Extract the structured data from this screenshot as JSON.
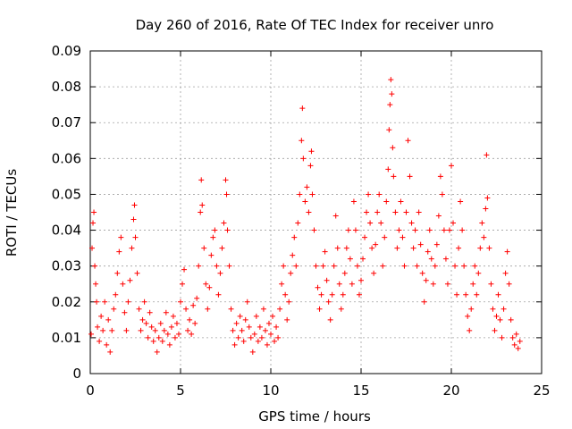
{
  "chart_data": {
    "type": "scatter",
    "title": "Day 260 of 2016, Rate Of TEC Index for receiver unro",
    "xlabel": "GPS time / hours",
    "ylabel": "ROTI / TECUs",
    "xlim": [
      0,
      25
    ],
    "ylim": [
      0,
      0.09
    ],
    "x_ticks": [
      0,
      5,
      10,
      15,
      20,
      25
    ],
    "x_tick_labels": [
      "0",
      "5",
      "10",
      "15",
      "20",
      "25"
    ],
    "y_ticks": [
      0,
      0.01,
      0.02,
      0.03,
      0.04,
      0.05,
      0.06,
      0.07,
      0.08,
      0.09
    ],
    "y_tick_labels": [
      "0",
      "0.01",
      "0.02",
      "0.03",
      "0.04",
      "0.05",
      "0.06",
      "0.07",
      "0.08",
      "0.09"
    ],
    "grid": true,
    "marker": "+",
    "marker_color": "#ff0000",
    "points": [
      [
        0.05,
        0.011
      ],
      [
        0.1,
        0.035
      ],
      [
        0.15,
        0.042
      ],
      [
        0.2,
        0.045
      ],
      [
        0.25,
        0.03
      ],
      [
        0.3,
        0.025
      ],
      [
        0.35,
        0.02
      ],
      [
        0.4,
        0.013
      ],
      [
        0.5,
        0.009
      ],
      [
        0.6,
        0.016
      ],
      [
        0.7,
        0.012
      ],
      [
        0.8,
        0.02
      ],
      [
        0.9,
        0.008
      ],
      [
        1.0,
        0.015
      ],
      [
        1.1,
        0.006
      ],
      [
        1.2,
        0.012
      ],
      [
        1.3,
        0.018
      ],
      [
        1.4,
        0.022
      ],
      [
        1.5,
        0.028
      ],
      [
        1.6,
        0.034
      ],
      [
        1.7,
        0.038
      ],
      [
        1.8,
        0.025
      ],
      [
        1.9,
        0.017
      ],
      [
        2.0,
        0.012
      ],
      [
        2.1,
        0.02
      ],
      [
        2.2,
        0.026
      ],
      [
        2.3,
        0.035
      ],
      [
        2.4,
        0.043
      ],
      [
        2.45,
        0.047
      ],
      [
        2.5,
        0.038
      ],
      [
        2.6,
        0.028
      ],
      [
        2.7,
        0.018
      ],
      [
        2.8,
        0.012
      ],
      [
        2.9,
        0.015
      ],
      [
        3.0,
        0.02
      ],
      [
        3.1,
        0.014
      ],
      [
        3.2,
        0.01
      ],
      [
        3.3,
        0.017
      ],
      [
        3.4,
        0.013
      ],
      [
        3.5,
        0.009
      ],
      [
        3.6,
        0.012
      ],
      [
        3.7,
        0.006
      ],
      [
        3.8,
        0.01
      ],
      [
        3.9,
        0.014
      ],
      [
        4.0,
        0.009
      ],
      [
        4.1,
        0.012
      ],
      [
        4.2,
        0.017
      ],
      [
        4.3,
        0.011
      ],
      [
        4.4,
        0.008
      ],
      [
        4.5,
        0.013
      ],
      [
        4.6,
        0.016
      ],
      [
        4.7,
        0.01
      ],
      [
        4.8,
        0.014
      ],
      [
        4.9,
        0.011
      ],
      [
        5.0,
        0.02
      ],
      [
        5.1,
        0.025
      ],
      [
        5.2,
        0.029
      ],
      [
        5.3,
        0.018
      ],
      [
        5.4,
        0.012
      ],
      [
        5.5,
        0.015
      ],
      [
        5.6,
        0.011
      ],
      [
        5.7,
        0.019
      ],
      [
        5.8,
        0.014
      ],
      [
        5.9,
        0.021
      ],
      [
        6.0,
        0.03
      ],
      [
        6.1,
        0.045
      ],
      [
        6.15,
        0.054
      ],
      [
        6.2,
        0.047
      ],
      [
        6.3,
        0.035
      ],
      [
        6.4,
        0.025
      ],
      [
        6.5,
        0.018
      ],
      [
        6.6,
        0.024
      ],
      [
        6.7,
        0.033
      ],
      [
        6.8,
        0.038
      ],
      [
        6.9,
        0.04
      ],
      [
        7.0,
        0.03
      ],
      [
        7.1,
        0.022
      ],
      [
        7.2,
        0.028
      ],
      [
        7.3,
        0.035
      ],
      [
        7.4,
        0.042
      ],
      [
        7.5,
        0.054
      ],
      [
        7.55,
        0.05
      ],
      [
        7.6,
        0.04
      ],
      [
        7.7,
        0.03
      ],
      [
        7.8,
        0.018
      ],
      [
        7.9,
        0.012
      ],
      [
        8.0,
        0.008
      ],
      [
        8.1,
        0.014
      ],
      [
        8.2,
        0.01
      ],
      [
        8.3,
        0.016
      ],
      [
        8.4,
        0.012
      ],
      [
        8.5,
        0.009
      ],
      [
        8.6,
        0.015
      ],
      [
        8.7,
        0.02
      ],
      [
        8.8,
        0.013
      ],
      [
        8.9,
        0.01
      ],
      [
        9.0,
        0.006
      ],
      [
        9.1,
        0.011
      ],
      [
        9.2,
        0.016
      ],
      [
        9.3,
        0.009
      ],
      [
        9.4,
        0.013
      ],
      [
        9.5,
        0.01
      ],
      [
        9.6,
        0.018
      ],
      [
        9.7,
        0.012
      ],
      [
        9.8,
        0.008
      ],
      [
        9.9,
        0.014
      ],
      [
        10.0,
        0.011
      ],
      [
        10.1,
        0.016
      ],
      [
        10.2,
        0.009
      ],
      [
        10.3,
        0.013
      ],
      [
        10.4,
        0.01
      ],
      [
        10.5,
        0.018
      ],
      [
        10.6,
        0.025
      ],
      [
        10.7,
        0.03
      ],
      [
        10.8,
        0.022
      ],
      [
        10.9,
        0.015
      ],
      [
        11.0,
        0.02
      ],
      [
        11.1,
        0.028
      ],
      [
        11.2,
        0.033
      ],
      [
        11.3,
        0.038
      ],
      [
        11.4,
        0.03
      ],
      [
        11.5,
        0.042
      ],
      [
        11.6,
        0.05
      ],
      [
        11.7,
        0.065
      ],
      [
        11.75,
        0.074
      ],
      [
        11.8,
        0.06
      ],
      [
        11.9,
        0.048
      ],
      [
        12.0,
        0.052
      ],
      [
        12.1,
        0.045
      ],
      [
        12.2,
        0.058
      ],
      [
        12.25,
        0.062
      ],
      [
        12.3,
        0.05
      ],
      [
        12.4,
        0.04
      ],
      [
        12.5,
        0.03
      ],
      [
        12.6,
        0.024
      ],
      [
        12.7,
        0.018
      ],
      [
        12.8,
        0.022
      ],
      [
        12.9,
        0.03
      ],
      [
        13.0,
        0.034
      ],
      [
        13.1,
        0.026
      ],
      [
        13.2,
        0.02
      ],
      [
        13.3,
        0.015
      ],
      [
        13.4,
        0.022
      ],
      [
        13.5,
        0.03
      ],
      [
        13.6,
        0.044
      ],
      [
        13.7,
        0.035
      ],
      [
        13.8,
        0.025
      ],
      [
        13.9,
        0.018
      ],
      [
        14.0,
        0.022
      ],
      [
        14.1,
        0.028
      ],
      [
        14.2,
        0.035
      ],
      [
        14.3,
        0.04
      ],
      [
        14.4,
        0.032
      ],
      [
        14.5,
        0.025
      ],
      [
        14.6,
        0.048
      ],
      [
        14.7,
        0.04
      ],
      [
        14.8,
        0.03
      ],
      [
        14.9,
        0.022
      ],
      [
        15.0,
        0.026
      ],
      [
        15.1,
        0.032
      ],
      [
        15.2,
        0.038
      ],
      [
        15.3,
        0.045
      ],
      [
        15.4,
        0.05
      ],
      [
        15.5,
        0.042
      ],
      [
        15.6,
        0.035
      ],
      [
        15.7,
        0.028
      ],
      [
        15.8,
        0.036
      ],
      [
        15.9,
        0.045
      ],
      [
        16.0,
        0.05
      ],
      [
        16.1,
        0.042
      ],
      [
        16.2,
        0.03
      ],
      [
        16.3,
        0.038
      ],
      [
        16.4,
        0.048
      ],
      [
        16.5,
        0.057
      ],
      [
        16.55,
        0.068
      ],
      [
        16.6,
        0.075
      ],
      [
        16.65,
        0.082
      ],
      [
        16.7,
        0.078
      ],
      [
        16.75,
        0.063
      ],
      [
        16.8,
        0.055
      ],
      [
        16.9,
        0.045
      ],
      [
        17.0,
        0.035
      ],
      [
        17.1,
        0.04
      ],
      [
        17.2,
        0.048
      ],
      [
        17.3,
        0.038
      ],
      [
        17.4,
        0.03
      ],
      [
        17.5,
        0.045
      ],
      [
        17.6,
        0.065
      ],
      [
        17.7,
        0.055
      ],
      [
        17.8,
        0.042
      ],
      [
        17.9,
        0.035
      ],
      [
        18.0,
        0.04
      ],
      [
        18.1,
        0.03
      ],
      [
        18.2,
        0.045
      ],
      [
        18.3,
        0.036
      ],
      [
        18.4,
        0.028
      ],
      [
        18.5,
        0.02
      ],
      [
        18.6,
        0.026
      ],
      [
        18.7,
        0.034
      ],
      [
        18.8,
        0.04
      ],
      [
        18.9,
        0.032
      ],
      [
        19.0,
        0.025
      ],
      [
        19.1,
        0.03
      ],
      [
        19.2,
        0.036
      ],
      [
        19.3,
        0.044
      ],
      [
        19.4,
        0.055
      ],
      [
        19.5,
        0.05
      ],
      [
        19.6,
        0.04
      ],
      [
        19.7,
        0.032
      ],
      [
        19.8,
        0.025
      ],
      [
        19.9,
        0.04
      ],
      [
        20.0,
        0.058
      ],
      [
        20.1,
        0.042
      ],
      [
        20.2,
        0.03
      ],
      [
        20.3,
        0.022
      ],
      [
        20.4,
        0.035
      ],
      [
        20.5,
        0.048
      ],
      [
        20.6,
        0.04
      ],
      [
        20.7,
        0.03
      ],
      [
        20.8,
        0.022
      ],
      [
        20.9,
        0.016
      ],
      [
        21.0,
        0.012
      ],
      [
        21.1,
        0.018
      ],
      [
        21.2,
        0.025
      ],
      [
        21.3,
        0.03
      ],
      [
        21.4,
        0.022
      ],
      [
        21.5,
        0.028
      ],
      [
        21.6,
        0.035
      ],
      [
        21.7,
        0.042
      ],
      [
        21.8,
        0.038
      ],
      [
        21.9,
        0.046
      ],
      [
        21.95,
        0.061
      ],
      [
        22.0,
        0.049
      ],
      [
        22.1,
        0.035
      ],
      [
        22.2,
        0.025
      ],
      [
        22.3,
        0.018
      ],
      [
        22.4,
        0.012
      ],
      [
        22.5,
        0.016
      ],
      [
        22.6,
        0.022
      ],
      [
        22.7,
        0.015
      ],
      [
        22.8,
        0.01
      ],
      [
        22.9,
        0.018
      ],
      [
        23.0,
        0.028
      ],
      [
        23.1,
        0.034
      ],
      [
        23.2,
        0.025
      ],
      [
        23.3,
        0.015
      ],
      [
        23.4,
        0.01
      ],
      [
        23.5,
        0.008
      ],
      [
        23.6,
        0.011
      ],
      [
        23.7,
        0.007
      ],
      [
        23.8,
        0.009
      ]
    ]
  }
}
